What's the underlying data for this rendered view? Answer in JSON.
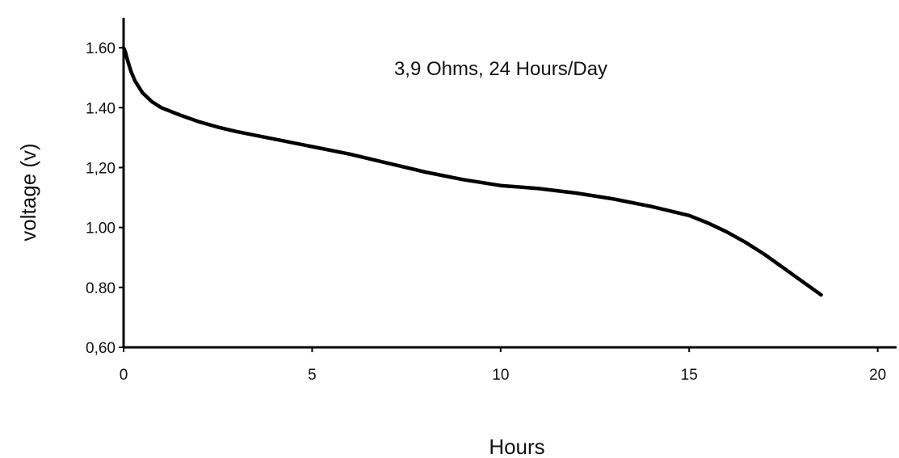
{
  "chart_data": {
    "type": "line",
    "title": "",
    "annotation": "3,9 Ohms, 24 Hours/Day",
    "xlabel": "Hours",
    "ylabel": "voltage (v)",
    "xlim": [
      0,
      20.5
    ],
    "ylim": [
      0.6,
      1.7
    ],
    "x_ticks": [
      0,
      5,
      10,
      15,
      20
    ],
    "x_tick_labels": [
      "0",
      "5",
      "10",
      "15",
      "20"
    ],
    "y_ticks": [
      0.6,
      0.8,
      1.0,
      1.2,
      1.4,
      1.6
    ],
    "y_tick_labels": [
      "0,60",
      "0.80",
      "1.00",
      "1,20",
      "1.40",
      "1.60"
    ],
    "grid": false,
    "series": [
      {
        "x": [
          0,
          0.05,
          0.1,
          0.2,
          0.3,
          0.5,
          0.75,
          1,
          1.5,
          2,
          2.5,
          3,
          4,
          5,
          6,
          7,
          8,
          9,
          10,
          11,
          12,
          13,
          14,
          15,
          15.5,
          16,
          16.5,
          17,
          17.5,
          18,
          18.5
        ],
        "y": [
          1.6,
          1.585,
          1.56,
          1.52,
          1.49,
          1.45,
          1.42,
          1.4,
          1.375,
          1.353,
          1.335,
          1.32,
          1.295,
          1.27,
          1.245,
          1.215,
          1.185,
          1.16,
          1.14,
          1.13,
          1.115,
          1.095,
          1.07,
          1.04,
          1.015,
          0.985,
          0.95,
          0.91,
          0.865,
          0.82,
          0.775
        ]
      }
    ]
  }
}
